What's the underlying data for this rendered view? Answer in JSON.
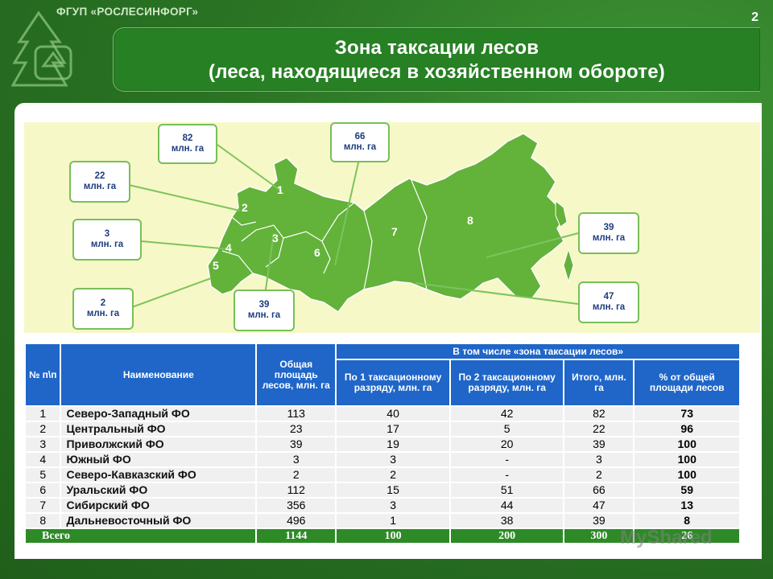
{
  "header": {
    "org_name": "ФГУП «РОСЛЕСИНФОРГ»",
    "page_number": "2",
    "title_line1": "Зона таксации лесов",
    "title_line2": "(леса, находящиеся в хозяйственном обороте)"
  },
  "map": {
    "callouts": [
      {
        "value": "82",
        "unit": "млн. га"
      },
      {
        "value": "66",
        "unit": "млн. га"
      },
      {
        "value": "22",
        "unit": "млн. га"
      },
      {
        "value": "3",
        "unit": "млн. га"
      },
      {
        "value": "2",
        "unit": "млн. га"
      },
      {
        "value": "39",
        "unit": "млн. га"
      },
      {
        "value": "39",
        "unit": "млн. га"
      },
      {
        "value": "47",
        "unit": "млн. га"
      }
    ],
    "region_numbers": [
      "1",
      "2",
      "3",
      "4",
      "5",
      "6",
      "7",
      "8"
    ]
  },
  "table": {
    "headers": {
      "num": "№ п\\п",
      "name": "Наименование",
      "total_area": "Общая площадь лесов, млн. га",
      "group": "В том числе «зона таксации лесов»",
      "cat1": "По 1 таксационному разряду, млн. га",
      "cat2": "По 2 таксационному разряду, млн. га",
      "sum": "Итого, млн. га",
      "pct": "% от общей площади лесов"
    },
    "rows": [
      {
        "n": "1",
        "name": "Северо-Западный ФО",
        "total": "113",
        "c1": "40",
        "c2": "42",
        "sum": "82",
        "pct": "73"
      },
      {
        "n": "2",
        "name": "Центральный ФО",
        "total": "23",
        "c1": "17",
        "c2": "5",
        "sum": "22",
        "pct": "96"
      },
      {
        "n": "3",
        "name": "Приволжский ФО",
        "total": "39",
        "c1": "19",
        "c2": "20",
        "sum": "39",
        "pct": "100"
      },
      {
        "n": "4",
        "name": "Южный ФО",
        "total": "3",
        "c1": "3",
        "c2": "-",
        "sum": "3",
        "pct": "100"
      },
      {
        "n": "5",
        "name": "Северо-Кавказский ФО",
        "total": "2",
        "c1": "2",
        "c2": "-",
        "sum": "2",
        "pct": "100"
      },
      {
        "n": "6",
        "name": "Уральский ФО",
        "total": "112",
        "c1": "15",
        "c2": "51",
        "sum": "66",
        "pct": "59"
      },
      {
        "n": "7",
        "name": "Сибирский ФО",
        "total": "356",
        "c1": "3",
        "c2": "44",
        "sum": "47",
        "pct": "13"
      },
      {
        "n": "8",
        "name": "Дальневосточный ФО",
        "total": "496",
        "c1": "1",
        "c2": "38",
        "sum": "39",
        "pct": "8"
      }
    ],
    "total_row": {
      "label": "Всего",
      "total": "1144",
      "c1": "100",
      "c2": "200",
      "sum": "300",
      "pct": "26"
    }
  },
  "watermark": "MyShared",
  "colors": {
    "background_green": "#2a7424",
    "header_blue": "#1f66c8",
    "map_green": "#63b23a",
    "callout_border": "#78bf58",
    "map_background": "#f7f8c7"
  }
}
